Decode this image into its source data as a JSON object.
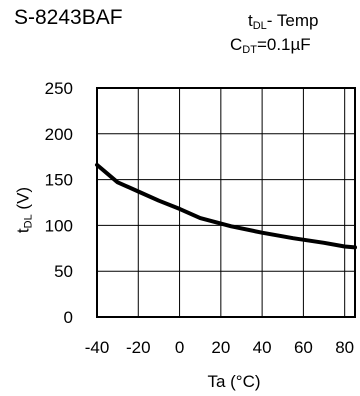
{
  "chart_data": {
    "type": "line",
    "title": "S-8243BAF",
    "condition_line1": {
      "main": "t",
      "sub": "DL",
      "rest": "- Temp"
    },
    "condition_line2": {
      "main": "C",
      "sub": "DT",
      "rest": "=0.1µF"
    },
    "xlabel": "Ta (°C)",
    "ylabel": {
      "main": "t",
      "sub": "DL",
      "rest": " (V)"
    },
    "xlim": [
      -40,
      85
    ],
    "ylim": [
      0,
      250
    ],
    "xticks": [
      -40,
      -20,
      0,
      20,
      40,
      60,
      80
    ],
    "yticks": [
      0,
      50,
      100,
      150,
      200,
      250
    ],
    "grid": true,
    "series": [
      {
        "x": [
          -40,
          -30,
          -20,
          -10,
          0,
          10,
          25,
          40,
          55,
          70,
          80,
          85
        ],
        "y": [
          166,
          147,
          137,
          127,
          118,
          108,
          99,
          92,
          86,
          81,
          77,
          76
        ]
      }
    ]
  }
}
